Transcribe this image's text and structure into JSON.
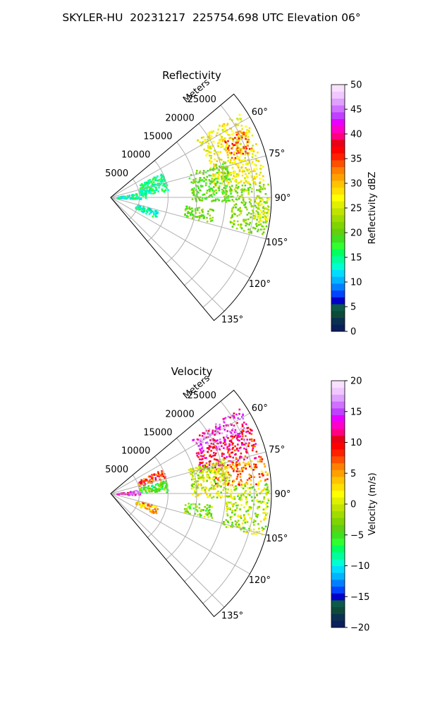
{
  "figure": {
    "title": "SKYLER-HU  20231217  225754.698 UTC Elevation 06°"
  },
  "chart_data": [
    {
      "type": "heatmap",
      "subtype": "polar-sector",
      "title": "Reflectivity",
      "radial_label": "Meters",
      "radial_ticks": [
        "5000",
        "10000",
        "15000",
        "20000",
        "25000"
      ],
      "angle_ticks": [
        "60°",
        "75°",
        "90°",
        "105°",
        "120°",
        "135°"
      ],
      "theta_range_deg": [
        50,
        140
      ],
      "r_max_m": 28000,
      "grid": true,
      "colorbar": {
        "label": "Reflectivity dBZ",
        "range": [
          0,
          50
        ],
        "ticks": [
          "0",
          "5",
          "10",
          "15",
          "20",
          "25",
          "30",
          "35",
          "40",
          "45",
          "50"
        ],
        "colors": [
          "#0b1f5c",
          "#0b3050",
          "#0e4a3a",
          "#0b5a4a",
          "#0000c8",
          "#0044ff",
          "#0080ff",
          "#00b4ff",
          "#00dcff",
          "#00ffd0",
          "#00ff9c",
          "#00ff60",
          "#30ff30",
          "#40e020",
          "#60d010",
          "#80d400",
          "#a0dc00",
          "#c0e400",
          "#e0f000",
          "#ffff00",
          "#ffe000",
          "#ffc400",
          "#ffa000",
          "#ff8000",
          "#ff5000",
          "#ff2000",
          "#ff0000",
          "#e80018",
          "#ff0080",
          "#ff00c8",
          "#e800ff",
          "#c040ff",
          "#d070ff",
          "#e0a0ff",
          "#f0c8ff",
          "#f8e0ff"
        ]
      },
      "echo_regions": [
        {
          "theta": [
            56,
            84
          ],
          "r": [
            18000,
            27000
          ],
          "value": 27
        },
        {
          "theta": [
            62,
            72
          ],
          "r": [
            22000,
            26000
          ],
          "value": 34
        },
        {
          "theta": [
            84,
            104
          ],
          "r": [
            21000,
            27500
          ],
          "value": 22
        },
        {
          "theta": [
            90,
            100
          ],
          "r": [
            25000,
            27500
          ],
          "value": 26
        },
        {
          "theta": [
            72,
            92
          ],
          "r": [
            14000,
            21000
          ],
          "value": 20
        },
        {
          "theta": [
            64,
            84
          ],
          "r": [
            5000,
            10000
          ],
          "value": 15
        },
        {
          "theta": [
            80,
            92
          ],
          "r": [
            1000,
            6000
          ],
          "value": 14
        },
        {
          "theta": [
            104,
            114
          ],
          "r": [
            4500,
            8500
          ],
          "value": 14
        },
        {
          "theta": [
            96,
            104
          ],
          "r": [
            13000,
            18000
          ],
          "value": 21
        }
      ]
    },
    {
      "type": "heatmap",
      "subtype": "polar-sector",
      "title": "Velocity",
      "radial_label": "Meters",
      "radial_ticks": [
        "5000",
        "10000",
        "15000",
        "20000",
        "25000"
      ],
      "angle_ticks": [
        "60°",
        "75°",
        "90°",
        "105°",
        "120°",
        "135°"
      ],
      "theta_range_deg": [
        50,
        140
      ],
      "r_max_m": 28000,
      "grid": true,
      "colorbar": {
        "label": "Velocity (m/s)",
        "range": [
          -20,
          20
        ],
        "ticks": [
          "−20",
          "−15",
          "−10",
          "−5",
          "0",
          "5",
          "10",
          "15",
          "20"
        ],
        "colors": [
          "#0b1f5c",
          "#0b3050",
          "#0e4a3a",
          "#0b5a4a",
          "#0000c8",
          "#0044ff",
          "#0080ff",
          "#00b4ff",
          "#00dcff",
          "#00ffd0",
          "#00ff9c",
          "#00ff60",
          "#30ff30",
          "#40e020",
          "#60d010",
          "#80d400",
          "#a0dc00",
          "#c0e400",
          "#e0f000",
          "#ffff00",
          "#ffe000",
          "#ffc400",
          "#ffa000",
          "#ff8000",
          "#ff5000",
          "#ff2000",
          "#ff0000",
          "#e80018",
          "#ff0080",
          "#ff00c8",
          "#e800ff",
          "#c040ff",
          "#d070ff",
          "#e0a0ff",
          "#f0c8ff",
          "#f8e0ff"
        ]
      },
      "echo_regions": [
        {
          "theta": [
            56,
            66
          ],
          "r": [
            17000,
            27000
          ],
          "value": 14
        },
        {
          "theta": [
            64,
            76
          ],
          "r": [
            16000,
            27000
          ],
          "value": 10
        },
        {
          "theta": [
            76,
            86
          ],
          "r": [
            18000,
            27500
          ],
          "value": 6
        },
        {
          "theta": [
            86,
            106
          ],
          "r": [
            20000,
            27500
          ],
          "value": -1
        },
        {
          "theta": [
            72,
            92
          ],
          "r": [
            14000,
            21000
          ],
          "value": 0
        },
        {
          "theta": [
            64,
            74
          ],
          "r": [
            5000,
            10000
          ],
          "value": 8
        },
        {
          "theta": [
            76,
            88
          ],
          "r": [
            5000,
            10000
          ],
          "value": -5
        },
        {
          "theta": [
            82,
            92
          ],
          "r": [
            1000,
            5000
          ],
          "value": 14
        },
        {
          "theta": [
            104,
            114
          ],
          "r": [
            4500,
            8500
          ],
          "value": 4
        },
        {
          "theta": [
            96,
            104
          ],
          "r": [
            13000,
            18000
          ],
          "value": -3
        }
      ]
    }
  ]
}
